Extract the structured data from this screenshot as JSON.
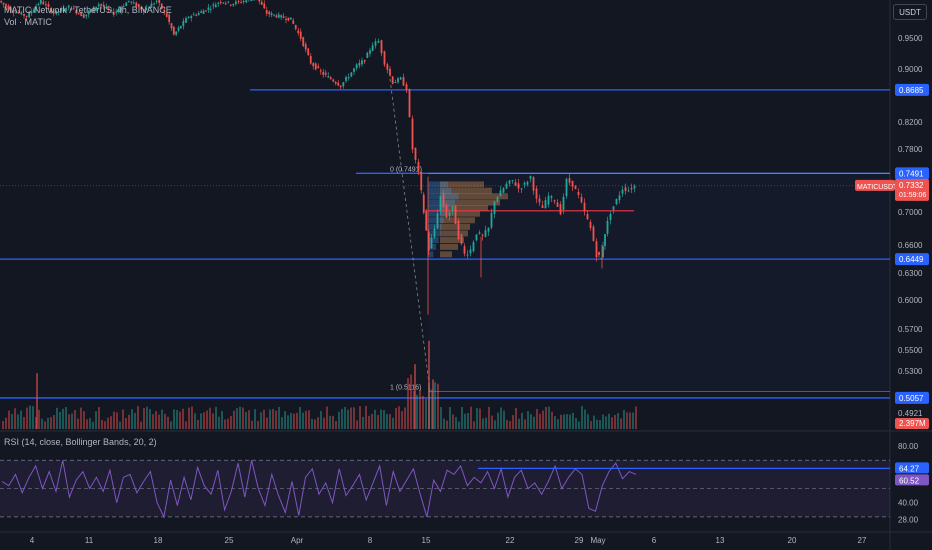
{
  "header": {
    "title": "MATIC Network / TetherUS, 4h, BINANCE",
    "volume_label": "Vol · MATIC",
    "rsi_label": "RSI (14, close, Bollinger Bands, 20, 2)"
  },
  "toolbar": {
    "currency": "USDT"
  },
  "colors": {
    "background": "#131722",
    "up": "#26a69a",
    "down": "#ef5350",
    "level_line": "#2962ff",
    "fib_line": "#9598a1",
    "rsi": "#7e57c2",
    "axis_text": "#b2b5be"
  },
  "chart_data": [
    {
      "type": "candlestick",
      "symbol": "MATICUSDT",
      "ylim": [
        0.48,
        1.0
      ],
      "y_ticks": [
        "0.9500",
        "0.9000",
        "0.8200",
        "0.7800",
        "0.7000",
        "0.6600",
        "0.6300",
        "0.6000",
        "0.5700",
        "0.5500",
        "0.5300",
        "0.4921"
      ],
      "x_ticks": [
        "4",
        "11",
        "18",
        "25",
        "Apr",
        "8",
        "15",
        "22",
        "29",
        "May",
        "6",
        "13",
        "20",
        "27"
      ],
      "horizontal_levels": [
        {
          "label": "0.8685",
          "value": 0.8685
        },
        {
          "label": "0.7491",
          "value": 0.7491
        },
        {
          "label": "0.6449",
          "value": 0.6449
        },
        {
          "label": "0.5057",
          "value": 0.5057
        }
      ],
      "fib_labels": [
        {
          "text": "0 (0.7491)",
          "value": 0.7491
        },
        {
          "text": "1 (0.5116)",
          "value": 0.5116
        }
      ],
      "last_price": {
        "symbol": "MATICUSDT",
        "price": "0.7332",
        "countdown": "01:59:06",
        "value": 0.7332
      },
      "red_level": 0.7015,
      "path_points": [
        [
          0,
          1.01
        ],
        [
          12,
          0.995
        ],
        [
          28,
          0.985
        ],
        [
          42,
          1.01
        ],
        [
          55,
          0.99
        ],
        [
          70,
          1.0
        ],
        [
          85,
          0.985
        ],
        [
          100,
          1.005
        ],
        [
          115,
          0.99
        ],
        [
          130,
          1.01
        ],
        [
          145,
          0.995
        ],
        [
          158,
          1.01
        ],
        [
          168,
          0.985
        ],
        [
          175,
          0.955
        ],
        [
          182,
          0.97
        ],
        [
          190,
          0.985
        ],
        [
          200,
          0.99
        ],
        [
          212,
          1.0
        ],
        [
          222,
          1.01
        ],
        [
          232,
          1.005
        ],
        [
          245,
          1.01
        ],
        [
          258,
          1.015
        ],
        [
          268,
          0.99
        ],
        [
          280,
          0.985
        ],
        [
          292,
          0.98
        ],
        [
          302,
          0.95
        ],
        [
          312,
          0.91
        ],
        [
          322,
          0.895
        ],
        [
          332,
          0.885
        ],
        [
          342,
          0.875
        ],
        [
          350,
          0.89
        ],
        [
          358,
          0.905
        ],
        [
          366,
          0.915
        ],
        [
          374,
          0.94
        ],
        [
          380,
          0.945
        ],
        [
          386,
          0.91
        ],
        [
          394,
          0.88
        ],
        [
          402,
          0.885
        ],
        [
          408,
          0.87
        ],
        [
          414,
          0.78
        ],
        [
          420,
          0.75
        ],
        [
          425,
          0.7
        ],
        [
          430,
          0.655
        ],
        [
          436,
          0.68
        ],
        [
          442,
          0.72
        ],
        [
          448,
          0.695
        ],
        [
          454,
          0.705
        ],
        [
          460,
          0.67
        ],
        [
          466,
          0.65
        ],
        [
          472,
          0.655
        ],
        [
          478,
          0.675
        ],
        [
          484,
          0.67
        ],
        [
          490,
          0.68
        ],
        [
          496,
          0.715
        ],
        [
          502,
          0.725
        ],
        [
          508,
          0.735
        ],
        [
          514,
          0.74
        ],
        [
          520,
          0.73
        ],
        [
          526,
          0.735
        ],
        [
          532,
          0.745
        ],
        [
          538,
          0.715
        ],
        [
          544,
          0.705
        ],
        [
          550,
          0.72
        ],
        [
          556,
          0.715
        ],
        [
          562,
          0.7
        ],
        [
          568,
          0.74
        ],
        [
          574,
          0.735
        ],
        [
          580,
          0.72
        ],
        [
          586,
          0.7
        ],
        [
          592,
          0.68
        ],
        [
          598,
          0.65
        ],
        [
          602,
          0.645
        ],
        [
          606,
          0.675
        ],
        [
          612,
          0.7
        ],
        [
          618,
          0.715
        ],
        [
          624,
          0.73
        ],
        [
          630,
          0.728
        ],
        [
          636,
          0.733
        ]
      ],
      "volume_profile": [
        {
          "price": 0.735,
          "size": 44
        },
        {
          "price": 0.727,
          "size": 52
        },
        {
          "price": 0.72,
          "size": 68
        },
        {
          "price": 0.712,
          "size": 60
        },
        {
          "price": 0.705,
          "size": 48
        },
        {
          "price": 0.698,
          "size": 40
        },
        {
          "price": 0.69,
          "size": 35
        },
        {
          "price": 0.682,
          "size": 30
        },
        {
          "price": 0.674,
          "size": 28
        },
        {
          "price": 0.666,
          "size": 24
        },
        {
          "price": 0.658,
          "size": 18
        },
        {
          "price": 0.65,
          "size": 12
        }
      ]
    },
    {
      "type": "bar",
      "name": "Volume",
      "last_value": "2.397M",
      "spike_bars": [
        {
          "x": 36,
          "v": 0.62
        },
        {
          "x": 414,
          "v": 0.72
        },
        {
          "x": 428,
          "v": 0.98
        },
        {
          "x": 432,
          "v": 0.55
        }
      ]
    },
    {
      "type": "line",
      "name": "RSI",
      "ylim": [
        20,
        90
      ],
      "y_ticks": [
        "80.00",
        "40.00",
        "28.00"
      ],
      "bands": {
        "upper": 70,
        "middle": 50,
        "lower": 30
      },
      "rsi_value": "60.52",
      "bb_value": "64.27",
      "bb_level": 64.27,
      "bb_line_start_x": 478,
      "values": [
        55,
        52,
        60,
        47,
        58,
        66,
        50,
        62,
        48,
        70,
        44,
        56,
        62,
        50,
        58,
        48,
        63,
        40,
        58,
        60,
        47,
        55,
        62,
        40,
        30,
        56,
        38,
        58,
        42,
        65,
        52,
        46,
        63,
        35,
        48,
        68,
        44,
        70,
        50,
        38,
        60,
        45,
        33,
        55,
        31,
        58,
        64,
        46,
        54,
        40,
        64,
        45,
        52,
        60,
        42,
        54,
        66,
        38,
        62,
        48,
        56,
        64,
        46,
        30,
        56,
        48,
        63,
        60,
        66,
        52,
        58,
        54,
        62,
        50,
        64,
        44,
        58,
        63,
        50,
        54,
        46,
        55,
        66,
        50,
        58,
        64,
        60,
        36,
        34,
        52,
        62,
        68,
        57,
        62,
        60
      ]
    }
  ]
}
